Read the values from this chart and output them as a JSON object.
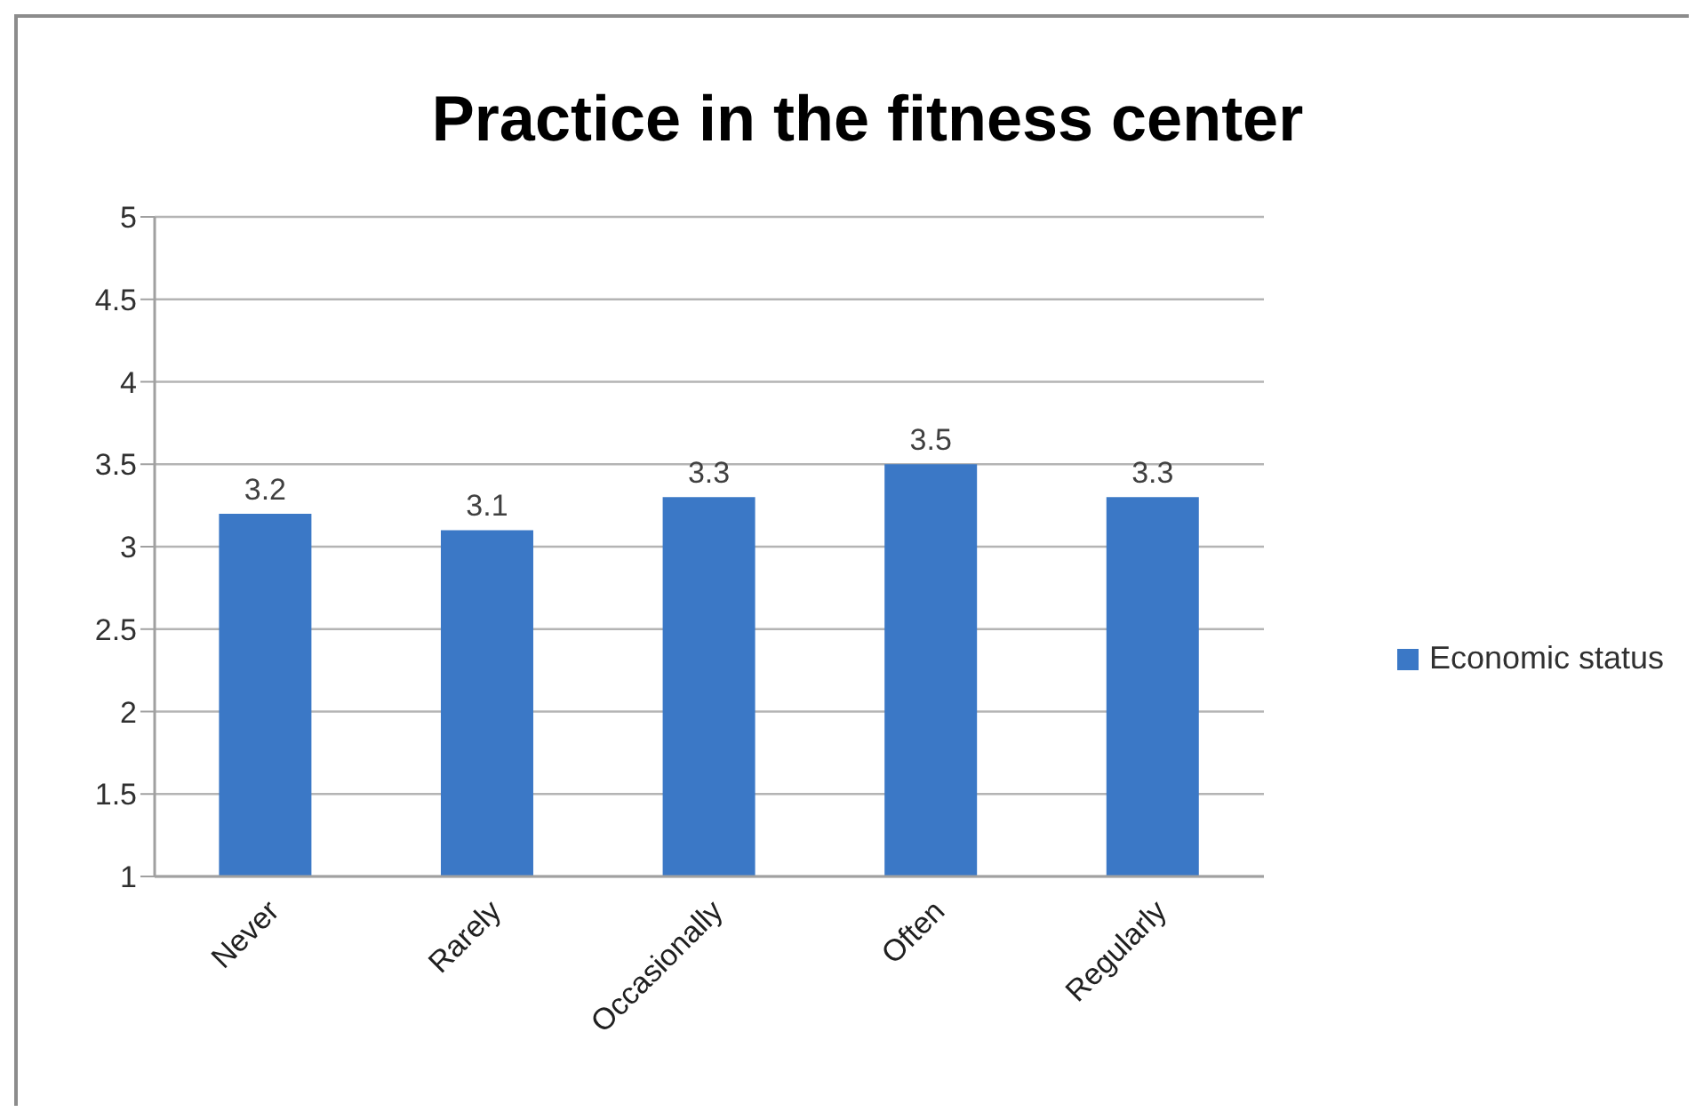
{
  "chart_data": {
    "type": "bar",
    "title": "Practice in the fitness center",
    "categories": [
      "Never",
      "Rarely",
      "Occasionally",
      "Often",
      "Regularly"
    ],
    "series": [
      {
        "name": "Economic status",
        "color": "#3b78c6",
        "values": [
          3.2,
          3.1,
          3.3,
          3.5,
          3.3
        ]
      }
    ],
    "ylim": [
      1,
      5
    ],
    "yticks": [
      1,
      1.5,
      2,
      2.5,
      3,
      3.5,
      4,
      4.5,
      5
    ],
    "grid": "y",
    "legend": "right",
    "data_labels": true
  }
}
